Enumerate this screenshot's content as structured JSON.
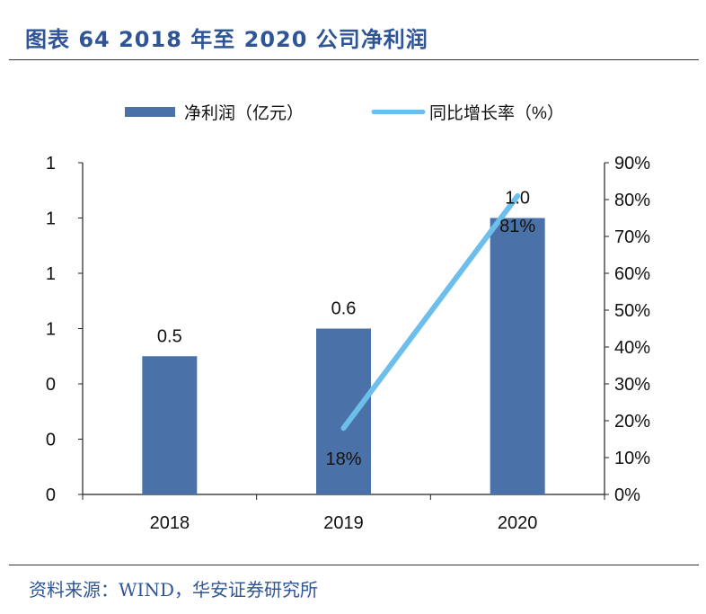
{
  "header": {
    "title": "图表 64 2018 年至 2020 公司净利润"
  },
  "footer": {
    "source": "资料来源：WIND，华安证券研究所"
  },
  "colors": {
    "bar": "#4a72a8",
    "line": "#6cbfeb",
    "title": "#2f5597"
  },
  "chart_data": {
    "type": "bar",
    "categories": [
      "2018",
      "2019",
      "2020"
    ],
    "series": [
      {
        "name": "净利润（亿元）",
        "type": "bar",
        "axis": "left",
        "values": [
          0.5,
          0.6,
          1.0
        ],
        "labels": [
          "0.5",
          "0.6",
          "1.0"
        ]
      },
      {
        "name": "同比增长率（%）",
        "type": "line",
        "axis": "right",
        "values": [
          null,
          18,
          81
        ],
        "labels": [
          "",
          "18%",
          "81%"
        ]
      }
    ],
    "left_axis": {
      "ylim": [
        0,
        1.2
      ],
      "tick_labels": [
        "0",
        "0",
        "0",
        "1",
        "1",
        "1",
        "1"
      ]
    },
    "right_axis": {
      "ylim": [
        0,
        90
      ],
      "tick_labels": [
        "0%",
        "10%",
        "20%",
        "30%",
        "40%",
        "50%",
        "60%",
        "70%",
        "80%",
        "90%"
      ]
    },
    "legend_position": "top",
    "grid": false
  }
}
